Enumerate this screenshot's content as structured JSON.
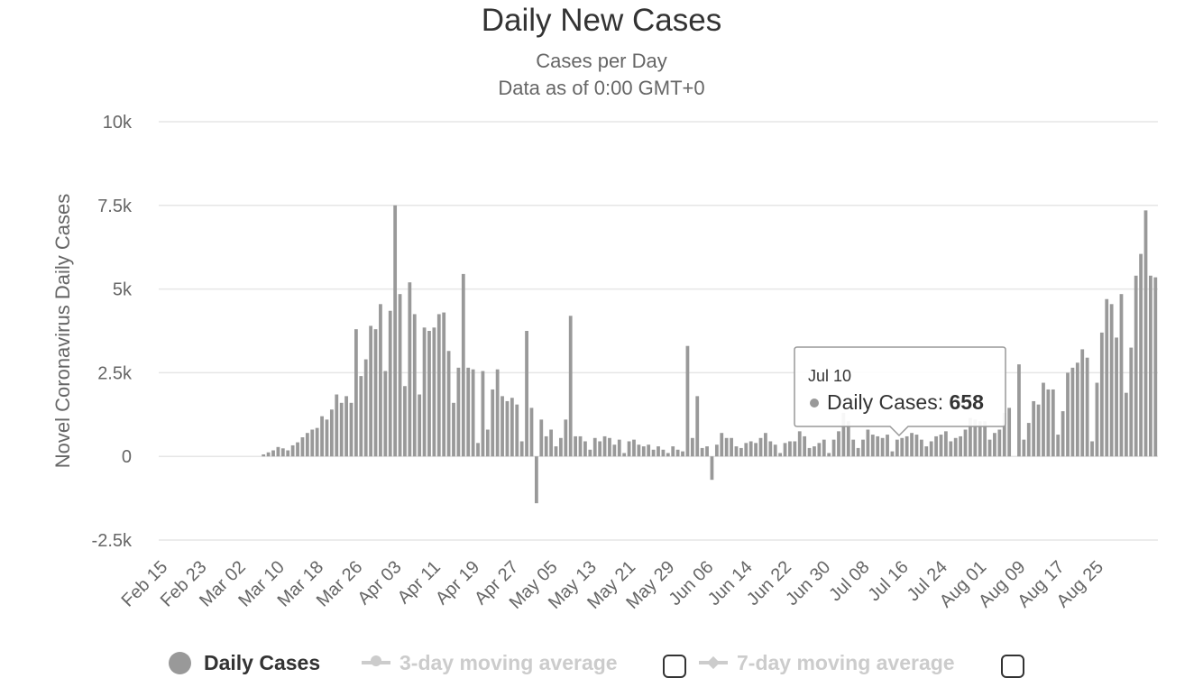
{
  "chart_data": {
    "type": "bar",
    "title": "Daily New Cases",
    "subtitle": [
      "Cases per Day",
      "Data as of 0:00 GMT+0"
    ],
    "ylabel": "Novel Coronavirus Daily Cases",
    "ylim": [
      -2500,
      10000
    ],
    "yticks": [
      "-2.5k",
      "0",
      "2.5k",
      "5k",
      "7.5k",
      "10k"
    ],
    "ytick_values": [
      -2500,
      0,
      2500,
      5000,
      7500,
      10000
    ],
    "xticks": [
      "Feb 15",
      "Feb 23",
      "Mar 02",
      "Mar 10",
      "Mar 18",
      "Mar 26",
      "Apr 03",
      "Apr 11",
      "Apr 19",
      "Apr 27",
      "May 05",
      "May 13",
      "May 21",
      "May 29",
      "Jun 06",
      "Jun 14",
      "Jun 22",
      "Jun 30",
      "Jul 08",
      "Jul 16",
      "Jul 24",
      "Aug 01",
      "Aug 09",
      "Aug 17",
      "Aug 25"
    ],
    "start_date": "Feb 15",
    "grid": true,
    "series": [
      {
        "name": "Daily Cases",
        "color": "#999999",
        "values": [
          0,
          0,
          0,
          0,
          0,
          0,
          0,
          0,
          0,
          0,
          0,
          0,
          0,
          0,
          0,
          0,
          0,
          0,
          0,
          0,
          0,
          60,
          120,
          180,
          280,
          240,
          180,
          330,
          420,
          570,
          700,
          800,
          850,
          1200,
          1100,
          1400,
          1850,
          1600,
          1800,
          1600,
          3800,
          2400,
          2900,
          3900,
          3800,
          4550,
          2550,
          4350,
          7500,
          4850,
          2100,
          5200,
          4250,
          1850,
          3850,
          3750,
          3850,
          4250,
          4300,
          3150,
          1600,
          2650,
          5450,
          2650,
          2600,
          400,
          2550,
          800,
          2000,
          2600,
          1800,
          1650,
          1750,
          1550,
          450,
          3750,
          1450,
          -1400,
          1100,
          600,
          800,
          300,
          550,
          1100,
          4200,
          600,
          600,
          450,
          200,
          550,
          450,
          600,
          550,
          350,
          500,
          100,
          450,
          500,
          350,
          300,
          350,
          200,
          300,
          200,
          100,
          300,
          200,
          150,
          3300,
          550,
          1800,
          250,
          300,
          -700,
          350,
          700,
          550,
          550,
          300,
          250,
          400,
          450,
          400,
          550,
          700,
          450,
          350,
          100,
          400,
          450,
          450,
          750,
          600,
          250,
          300,
          400,
          500,
          100,
          500,
          750,
          1300,
          1050,
          500,
          250,
          500,
          800,
          650,
          600,
          550,
          650,
          150,
          500,
          550,
          600,
          700,
          650,
          500,
          300,
          450,
          600,
          650,
          750,
          450,
          550,
          600,
          800,
          1150,
          1100,
          1050,
          1050,
          500,
          700,
          800,
          1300,
          1450,
          0,
          2750,
          500,
          1000,
          1650,
          1550,
          2200,
          2000,
          2000,
          650,
          1350,
          2500,
          2650,
          2800,
          3200,
          2950,
          450,
          2200,
          3700,
          4700,
          4550,
          3550,
          4850,
          1900,
          3250,
          5400,
          6050,
          7350,
          5400,
          5350
        ]
      }
    ],
    "tooltip": {
      "date": "Jul 10",
      "label": "Daily Cases",
      "value": "658"
    },
    "legend": [
      {
        "label": "Daily Cases",
        "active": true
      },
      {
        "label": "3-day moving average",
        "active": false
      },
      {
        "label": "7-day moving average",
        "active": false
      }
    ],
    "legend_position": "bottom-center"
  }
}
